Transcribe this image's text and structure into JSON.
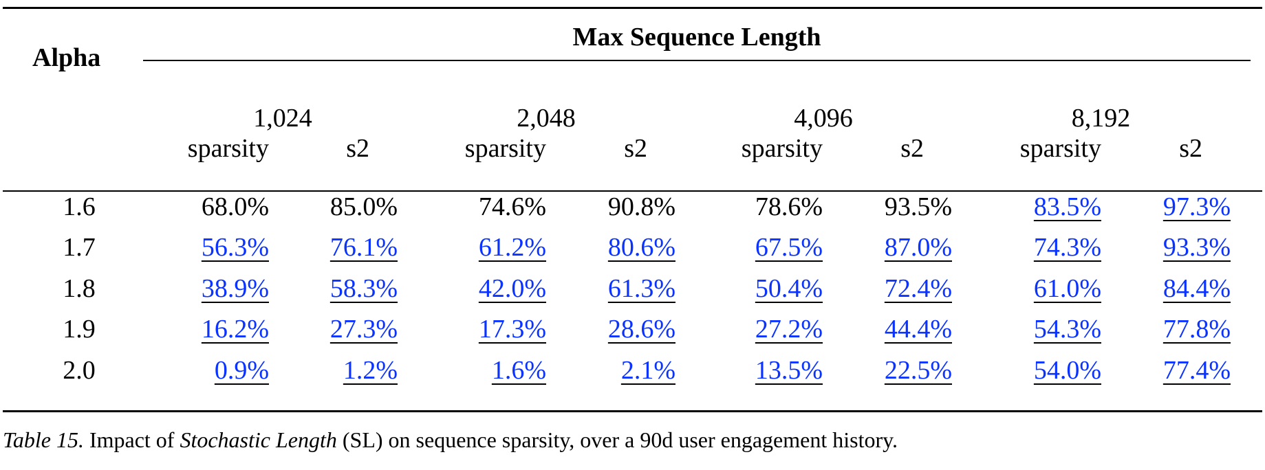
{
  "header": {
    "alpha": "Alpha",
    "group_title": "Max Sequence Length"
  },
  "lengths": [
    "1,024",
    "2,048",
    "4,096",
    "8,192"
  ],
  "subheaders": {
    "sparsity": "sparsity",
    "s2": "s2"
  },
  "rows": [
    {
      "alpha": "1.6",
      "values": [
        "68.0%",
        "85.0%",
        "74.6%",
        "90.8%",
        "78.6%",
        "93.5%",
        "83.5%",
        "97.3%"
      ],
      "linked": [
        false,
        false,
        false,
        false,
        false,
        false,
        true,
        true
      ]
    },
    {
      "alpha": "1.7",
      "values": [
        "56.3%",
        "76.1%",
        "61.2%",
        "80.6%",
        "67.5%",
        "87.0%",
        "74.3%",
        "93.3%"
      ],
      "linked": [
        true,
        true,
        true,
        true,
        true,
        true,
        true,
        true
      ]
    },
    {
      "alpha": "1.8",
      "values": [
        "38.9%",
        "58.3%",
        "42.0%",
        "61.3%",
        "50.4%",
        "72.4%",
        "61.0%",
        "84.4%"
      ],
      "linked": [
        true,
        true,
        true,
        true,
        true,
        true,
        true,
        true
      ]
    },
    {
      "alpha": "1.9",
      "values": [
        "16.2%",
        "27.3%",
        "17.3%",
        "28.6%",
        "27.2%",
        "44.4%",
        "54.3%",
        "77.8%"
      ],
      "linked": [
        true,
        true,
        true,
        true,
        true,
        true,
        true,
        true
      ]
    },
    {
      "alpha": "2.0",
      "values": [
        "0.9%",
        "1.2%",
        "1.6%",
        "2.1%",
        "13.5%",
        "22.5%",
        "54.0%",
        "77.4%"
      ],
      "linked": [
        true,
        true,
        true,
        true,
        true,
        true,
        true,
        true
      ]
    }
  ],
  "caption": {
    "label": "Table 15.",
    "pre": " Impact of ",
    "emph": "Stochastic Length",
    "post": " (SL) on sequence sparsity, over a 90d user engagement history."
  },
  "colors": {
    "link": "#0a33ff",
    "text": "#000000"
  }
}
